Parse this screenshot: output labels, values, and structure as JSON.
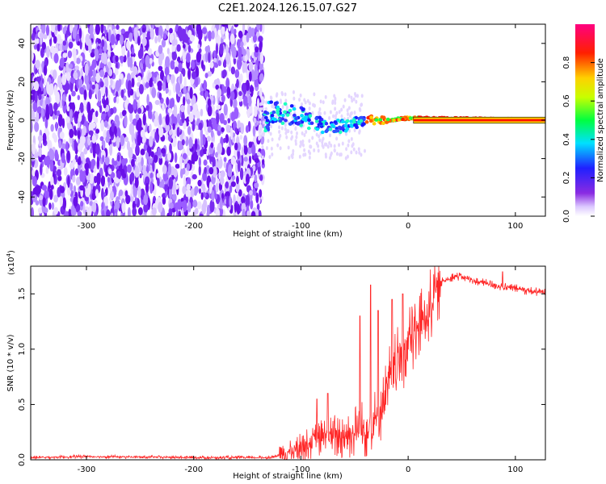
{
  "page": {
    "title": "C2E1.2024.126.15.07.G27"
  },
  "chart_data": [
    {
      "type": "heatmap",
      "xlabel": "Height of straight line (km)",
      "ylabel": "Frequency (Hz)",
      "xlim": [
        -352,
        128
      ],
      "ylim": [
        -50,
        50
      ],
      "xticks": [
        -300,
        -200,
        -100,
        0,
        100
      ],
      "yticks": [
        -40,
        -20,
        0,
        20,
        40
      ],
      "colorbar": {
        "label": "Normalized spectral amplitude",
        "range": [
          0.0,
          1.0
        ],
        "ticks": [
          0.0,
          0.2,
          0.4,
          0.6,
          0.8
        ],
        "colormap": "rainbow (white-violet-blue-cyan-green-yellow-red-magenta)"
      },
      "regions": [
        {
          "name": "noise",
          "x_range": [
            -352,
            -135
          ],
          "freq_range": [
            -50,
            50
          ],
          "amplitude": "0.0-0.15"
        },
        {
          "name": "signal",
          "x_range": [
            -135,
            128
          ],
          "trace_freq": [
            [
              -130,
              5
            ],
            [
              -100,
              2
            ],
            [
              -80,
              -3
            ],
            [
              -60,
              -3
            ],
            [
              -40,
              0
            ],
            [
              -20,
              0
            ],
            [
              0,
              1
            ],
            [
              128,
              0
            ]
          ],
          "amplitude_start": 0.3,
          "amplitude_end": 0.9
        }
      ]
    },
    {
      "type": "line",
      "xlabel": "Height of straight line (km)",
      "ylabel": "SNR (10 * v/v)",
      "yscale_label": "(x10",
      "yscale_exp": "4",
      "xlim": [
        -352,
        128
      ],
      "ylim": [
        0.0,
        1.75
      ],
      "xticks": [
        -300,
        -200,
        -100,
        0,
        100
      ],
      "yticks": [
        0.0,
        0.5,
        1.0,
        1.5
      ],
      "ytick_labels": [
        "0.0",
        "0.5",
        "1.0",
        "1.5"
      ],
      "xtick_labels": [
        "-300",
        "-200",
        "-100",
        "0",
        "100"
      ],
      "color": "#ff0000",
      "x": [
        -352,
        -300,
        -200,
        -130,
        -115,
        -100,
        -80,
        -60,
        -50,
        -40,
        -30,
        -25,
        -20,
        -10,
        0,
        10,
        20,
        30,
        40,
        50,
        60,
        70,
        80,
        90,
        100,
        110,
        128
      ],
      "values": [
        0.02,
        0.03,
        0.02,
        0.02,
        0.05,
        0.12,
        0.2,
        0.22,
        0.25,
        0.28,
        0.35,
        0.45,
        0.65,
        0.85,
        1.05,
        1.2,
        1.4,
        1.6,
        1.65,
        1.66,
        1.62,
        1.6,
        1.58,
        1.56,
        1.55,
        1.53,
        1.51
      ],
      "spikes": [
        [
          -85,
          0.55
        ],
        [
          -75,
          0.6
        ],
        [
          -45,
          1.3
        ],
        [
          -35,
          1.58
        ],
        [
          -28,
          1.35
        ],
        [
          -15,
          1.45
        ],
        [
          -5,
          1.5
        ],
        [
          88,
          1.7
        ]
      ]
    }
  ]
}
